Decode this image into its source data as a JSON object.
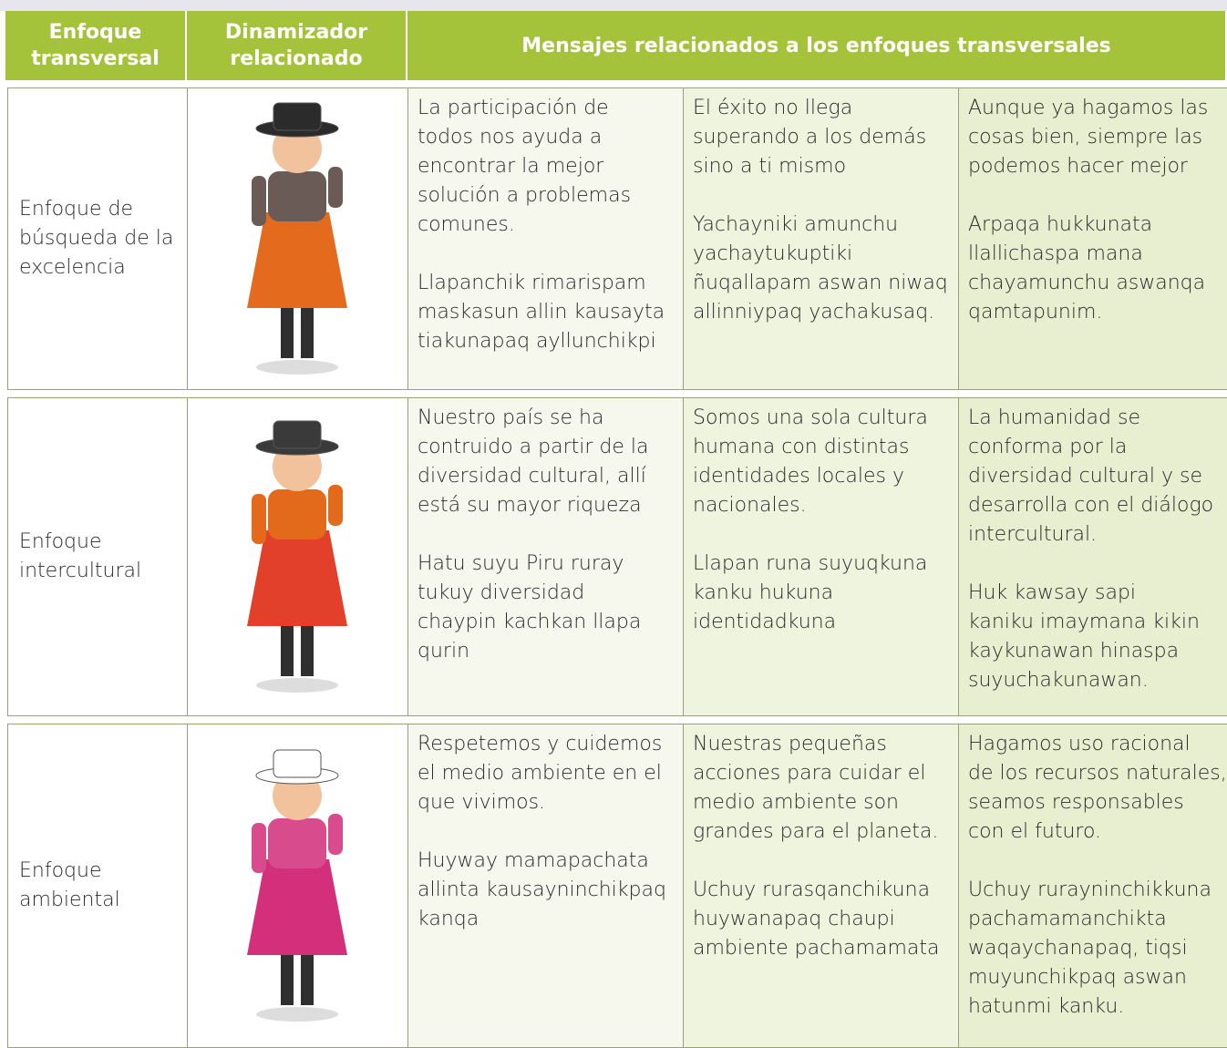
{
  "header": {
    "columns": [
      [
        "Enfoque",
        "transversal"
      ],
      [
        "Dinamizador",
        "relacionado"
      ],
      [
        "Mensajes relacionados a los enfoques transversales"
      ]
    ]
  },
  "rows": [
    {
      "label": [
        "Enfoque de",
        "búsqueda de la",
        "excelencia"
      ],
      "messages": [
        [
          [
            "La participación de",
            "todos nos ayuda a",
            "encontrar la mejor",
            "solución a problemas",
            "comunes."
          ],
          [
            "Llapanchik rimarispam",
            "maskasun allin kausayta",
            "tiakunapaq ayllunchikpi"
          ]
        ],
        [
          [
            "El éxito no llega",
            "superando a los demás",
            "sino a ti mismo"
          ],
          [
            "Yachayniki amunchu",
            "yachaytukuptiki",
            "ñuqallapam aswan niwaq",
            "allinniypaq yachakusaq."
          ]
        ],
        [
          [
            "Aunque ya hagamos las",
            "cosas bien, siempre las",
            "podemos hacer mejor"
          ],
          [
            "Arpaqa hukkunata",
            "llallichaspa mana",
            "chayamunchu aswanqa",
            "qamtapunim."
          ]
        ]
      ]
    },
    {
      "label": [
        "Enfoque",
        "intercultural"
      ],
      "messages": [
        [
          [
            "Nuestro país se ha",
            "contruido a partir de la",
            "diversidad cultural, allí",
            "está su mayor riqueza"
          ],
          [
            "Hatu suyu Piru ruray",
            "tukuy diversidad",
            "chaypin kachkan  llapa",
            "qurin"
          ]
        ],
        [
          [
            "Somos una sola cultura",
            "humana con distintas",
            "identidades locales y",
            "nacionales."
          ],
          [
            "Llapan  runa suyuqkuna",
            "kanku hukuna",
            "identidadkuna"
          ]
        ],
        [
          [
            "La humanidad se",
            "conforma por la",
            "diversidad cultural y se",
            "desarrolla con el diálogo",
            "intercultural."
          ],
          [
            "Huk kawsay sapi",
            "kaniku imaymana kikin",
            "kaykunawan hinaspa",
            "suyuchakunawan."
          ]
        ]
      ]
    },
    {
      "label": [
        "Enfoque",
        "ambiental"
      ],
      "messages": [
        [
          [
            "Respetemos y cuidemos",
            "el medio ambiente en el",
            "que vivimos."
          ],
          [
            "Huyway mamapachata",
            "allinta kausayninchikpaq",
            "kanqa"
          ]
        ],
        [
          [
            "Nuestras pequeñas",
            "acciones para cuidar el",
            "medio ambiente son",
            "grandes para el planeta."
          ],
          [
            "Uchuy rurasqanchikuna",
            "huywanapaq chaupi",
            "ambiente pachamamata"
          ]
        ],
        [
          [
            "Hagamos uso racional",
            "de los recursos naturales,",
            "seamos responsables",
            "con el futuro."
          ],
          [
            "Uchuy rurayninchikkuna",
            "pachamamanchikta",
            "waqaychanapaq, tiqsi",
            "muyunchikpaq aswan",
            "hatunmi kanku."
          ]
        ]
      ]
    }
  ]
}
